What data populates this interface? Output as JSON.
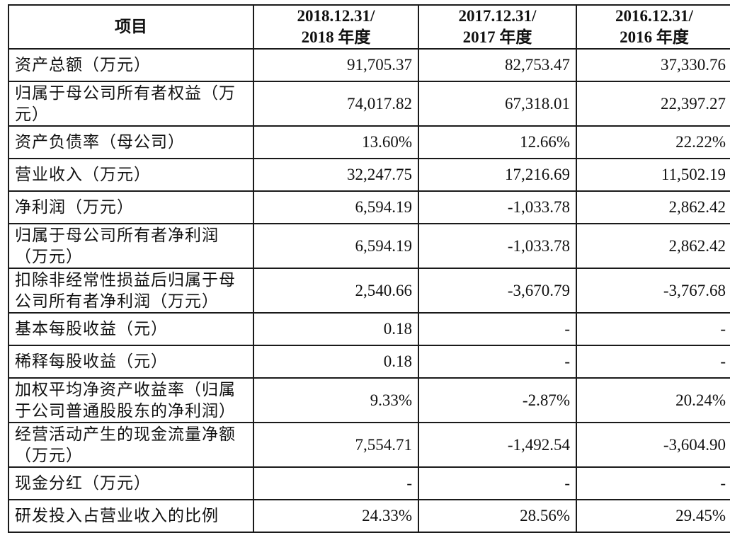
{
  "table": {
    "headers": [
      [
        "项目"
      ],
      [
        "2018.12.31/",
        "2018 年度"
      ],
      [
        "2017.12.31/",
        "2017 年度"
      ],
      [
        "2016.12.31/",
        "2016 年度"
      ]
    ],
    "rows": [
      {
        "label": "资产总额（万元）",
        "values": [
          "91,705.37",
          "82,753.47",
          "37,330.76"
        ]
      },
      {
        "label": "归属于母公司所有者权益（万元）",
        "values": [
          "74,017.82",
          "67,318.01",
          "22,397.27"
        ]
      },
      {
        "label": "资产负债率（母公司）",
        "values": [
          "13.60%",
          "12.66%",
          "22.22%"
        ]
      },
      {
        "label": "营业收入（万元）",
        "values": [
          "32,247.75",
          "17,216.69",
          "11,502.19"
        ]
      },
      {
        "label": "净利润（万元）",
        "values": [
          "6,594.19",
          "-1,033.78",
          "2,862.42"
        ]
      },
      {
        "label": "归属于母公司所有者净利润（万元）",
        "values": [
          "6,594.19",
          "-1,033.78",
          "2,862.42"
        ]
      },
      {
        "label": "扣除非经常性损益后归属于母公司所有者净利润（万元）",
        "values": [
          "2,540.66",
          "-3,670.79",
          "-3,767.68"
        ]
      },
      {
        "label": "基本每股收益（元）",
        "values": [
          "0.18",
          "-",
          "-"
        ]
      },
      {
        "label": "稀释每股收益（元）",
        "values": [
          "0.18",
          "-",
          "-"
        ]
      },
      {
        "label": "加权平均净资产收益率（归属于公司普通股股东的净利润）",
        "values": [
          "9.33%",
          "-2.87%",
          "20.24%"
        ]
      },
      {
        "label": "经营活动产生的现金流量净额（万元）",
        "values": [
          "7,554.71",
          "-1,492.54",
          "-3,604.90"
        ]
      },
      {
        "label": "现金分红（万元）",
        "values": [
          "-",
          "-",
          "-"
        ]
      },
      {
        "label": "研发投入占营业收入的比例",
        "values": [
          "24.33%",
          "28.56%",
          "29.45%"
        ]
      }
    ]
  }
}
